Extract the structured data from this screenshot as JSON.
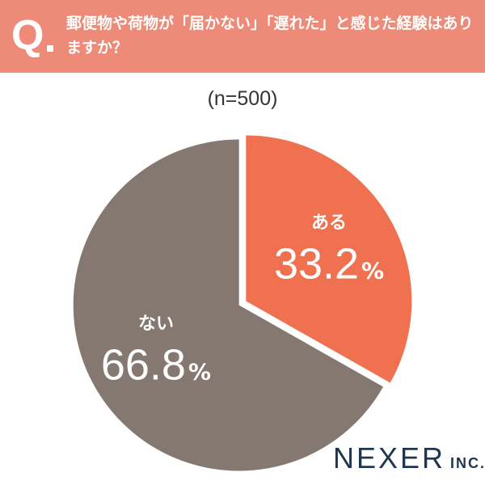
{
  "header": {
    "q_mark": "Q",
    "question": "郵便物や荷物が「届かない」「遅れた」と感じた経験はありますか？"
  },
  "chart_data": {
    "type": "pie",
    "sample": "(n=500)",
    "slices": [
      {
        "label": "ある",
        "value": 33.2,
        "display": "33.2",
        "unit": "%",
        "color": "#f07150"
      },
      {
        "label": "ない",
        "value": 66.8,
        "display": "66.8",
        "unit": "%",
        "color": "#847870"
      }
    ],
    "start": "12 o'clock",
    "direction": "clockwise"
  },
  "logo": {
    "main": "NEXER",
    "sub": "INC."
  }
}
